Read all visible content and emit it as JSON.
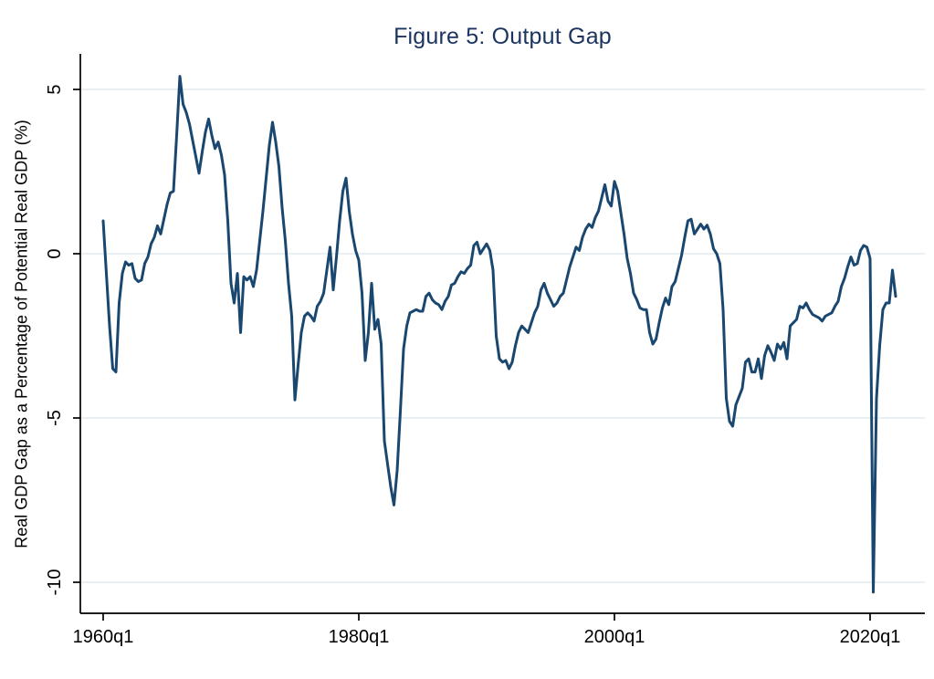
{
  "figure": {
    "title": "Figure 5: Output Gap",
    "y_axis_title": "Real GDP Gap as a Percentage of Potential Real GDP (%)"
  },
  "chart_data": {
    "type": "line",
    "title": "Figure 5: Output Gap",
    "xlabel": "",
    "ylabel": "Real GDP Gap as a Percentage of Potential Real GDP (%)",
    "frequency": "quarterly",
    "start": "1960q1",
    "end": "2022q1",
    "x_tick_labels": [
      "1960q1",
      "1980q1",
      "2000q1",
      "2020q1"
    ],
    "x_tick_quarter_index": [
      0,
      80,
      160,
      240
    ],
    "y_tick_labels": [
      "5",
      "0",
      "-5",
      "-10"
    ],
    "y_ticks": [
      5,
      0,
      -5,
      -10
    ],
    "ylim": [
      -11,
      6.1
    ],
    "xlim_quarter_index": [
      -7.2,
      257
    ],
    "grid": "horizontal",
    "legend_position": "none",
    "colors": {
      "line": "#1a476f",
      "title": "#1c3560",
      "grid": "#e2ebf0",
      "axis": "#000000",
      "background": "#ffffff"
    },
    "series": [
      {
        "name": "Real GDP Gap (% of Potential Real GDP)",
        "values": [
          1.0,
          -0.6,
          -2.2,
          -3.5,
          -3.6,
          -1.5,
          -0.6,
          -0.25,
          -0.35,
          -0.3,
          -0.75,
          -0.85,
          -0.8,
          -0.3,
          -0.1,
          0.3,
          0.5,
          0.85,
          0.6,
          1.05,
          1.5,
          1.85,
          1.9,
          3.6,
          5.4,
          4.55,
          4.3,
          3.95,
          3.45,
          2.95,
          2.45,
          3.1,
          3.7,
          4.1,
          3.6,
          3.2,
          3.4,
          3.0,
          2.4,
          1.0,
          -0.9,
          -1.5,
          -0.6,
          -2.4,
          -0.7,
          -0.8,
          -0.7,
          -1.0,
          -0.5,
          0.4,
          1.3,
          2.3,
          3.3,
          4.0,
          3.4,
          2.65,
          1.4,
          0.4,
          -0.9,
          -1.9,
          -4.45,
          -3.4,
          -2.4,
          -1.9,
          -1.8,
          -1.9,
          -2.05,
          -1.6,
          -1.45,
          -1.2,
          -0.5,
          0.2,
          -1.1,
          -0.1,
          1.0,
          1.9,
          2.3,
          1.3,
          0.6,
          0.1,
          -0.2,
          -1.2,
          -3.25,
          -2.4,
          -0.9,
          -2.3,
          -2.0,
          -2.75,
          -5.7,
          -6.4,
          -7.1,
          -7.65,
          -6.6,
          -4.8,
          -2.9,
          -2.2,
          -1.8,
          -1.75,
          -1.7,
          -1.75,
          -1.75,
          -1.3,
          -1.2,
          -1.4,
          -1.5,
          -1.55,
          -1.7,
          -1.45,
          -1.3,
          -0.95,
          -0.9,
          -0.7,
          -0.55,
          -0.6,
          -0.45,
          -0.35,
          0.25,
          0.35,
          0.0,
          0.15,
          0.3,
          0.1,
          -0.5,
          -2.5,
          -3.2,
          -3.3,
          -3.25,
          -3.5,
          -3.3,
          -2.8,
          -2.4,
          -2.2,
          -2.3,
          -2.4,
          -2.1,
          -1.8,
          -1.6,
          -1.1,
          -0.9,
          -1.2,
          -1.4,
          -1.6,
          -1.5,
          -1.3,
          -1.2,
          -0.8,
          -0.4,
          -0.1,
          0.2,
          0.1,
          0.5,
          0.75,
          0.9,
          0.8,
          1.1,
          1.3,
          1.7,
          2.1,
          1.6,
          1.45,
          2.2,
          1.9,
          1.25,
          0.6,
          -0.15,
          -0.6,
          -1.2,
          -1.4,
          -1.65,
          -1.7,
          -1.7,
          -2.4,
          -2.75,
          -2.6,
          -2.1,
          -1.65,
          -1.35,
          -1.55,
          -1.0,
          -0.85,
          -0.45,
          -0.05,
          0.5,
          1.0,
          1.05,
          0.6,
          0.75,
          0.9,
          0.75,
          0.87,
          0.6,
          0.15,
          0.0,
          -0.3,
          -1.7,
          -4.4,
          -5.1,
          -5.25,
          -4.6,
          -4.35,
          -4.1,
          -3.3,
          -3.2,
          -3.6,
          -3.6,
          -3.2,
          -3.8,
          -3.1,
          -2.8,
          -3.0,
          -3.25,
          -2.75,
          -2.9,
          -2.7,
          -3.2,
          -2.2,
          -2.1,
          -2.0,
          -1.6,
          -1.65,
          -1.5,
          -1.7,
          -1.85,
          -1.9,
          -1.95,
          -2.05,
          -1.9,
          -1.85,
          -1.8,
          -1.6,
          -1.45,
          -1.0,
          -0.75,
          -0.4,
          -0.1,
          -0.35,
          -0.3,
          0.1,
          0.25,
          0.2,
          -0.15,
          -10.3,
          -4.4,
          -2.8,
          -1.7,
          -1.5,
          -1.5,
          -0.5,
          -1.3
        ]
      }
    ]
  }
}
